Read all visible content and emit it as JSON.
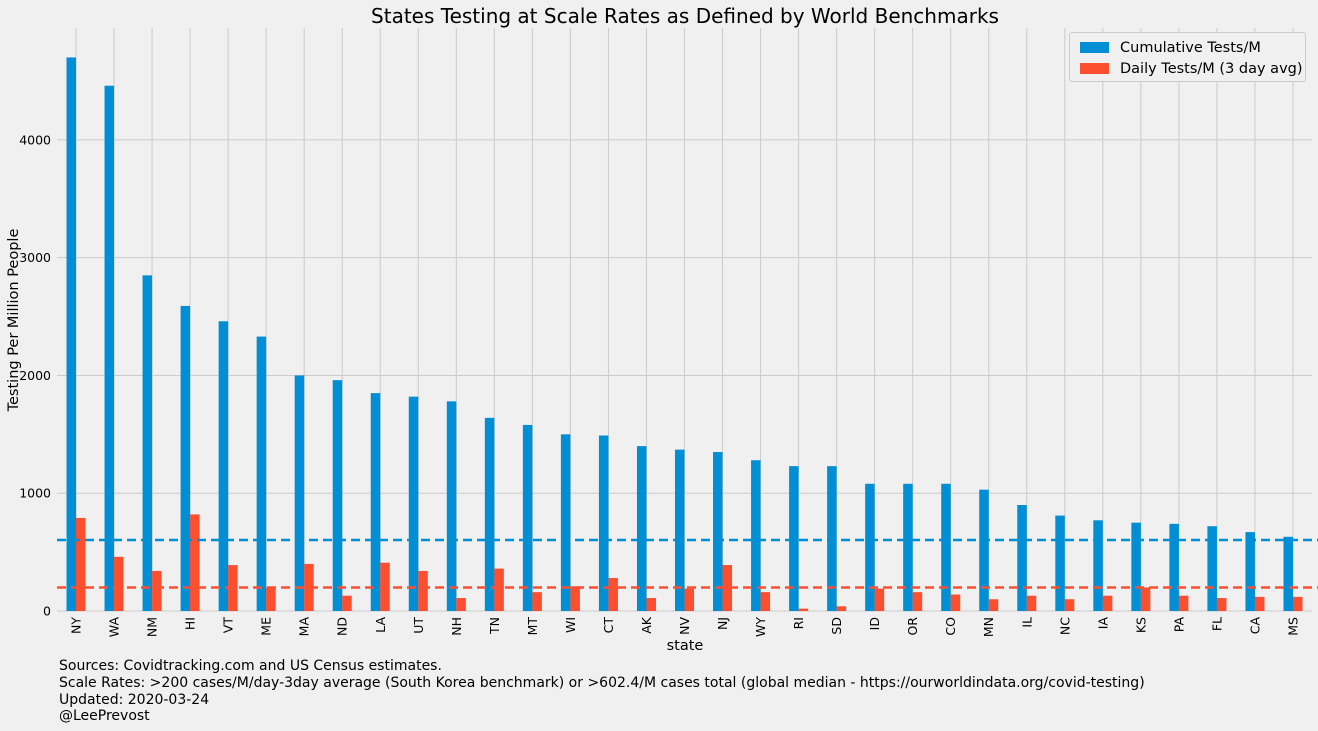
{
  "chart_data": {
    "type": "bar",
    "title": "States Testing at Scale Rates as Defined by World Benchmarks",
    "xlabel": "state",
    "ylabel": "Testing Per Million People",
    "ylim": [
      0,
      4950
    ],
    "yticks": [
      0,
      1000,
      2000,
      3000,
      4000
    ],
    "grid": true,
    "legend_position": "top-right",
    "categories": [
      "NY",
      "WA",
      "NM",
      "HI",
      "VT",
      "ME",
      "MA",
      "ND",
      "LA",
      "UT",
      "NH",
      "TN",
      "MT",
      "WI",
      "CT",
      "AK",
      "NV",
      "NJ",
      "WY",
      "RI",
      "SD",
      "ID",
      "OR",
      "CO",
      "MN",
      "IL",
      "NC",
      "IA",
      "KS",
      "PA",
      "FL",
      "CA",
      "MS"
    ],
    "series": [
      {
        "name": "Cumulative Tests/M",
        "color": "#008fd5",
        "values": [
          4700,
          4460,
          2850,
          2590,
          2460,
          2330,
          2000,
          1960,
          1850,
          1820,
          1780,
          1640,
          1580,
          1500,
          1490,
          1400,
          1370,
          1350,
          1280,
          1230,
          1230,
          1080,
          1080,
          1080,
          1030,
          900,
          810,
          770,
          750,
          740,
          720,
          670,
          630
        ]
      },
      {
        "name": "Daily Tests/M (3 day avg)",
        "color": "#fc4f30",
        "values": [
          790,
          460,
          340,
          820,
          390,
          200,
          400,
          130,
          410,
          340,
          110,
          360,
          160,
          210,
          280,
          110,
          190,
          390,
          160,
          20,
          40,
          190,
          160,
          140,
          100,
          130,
          100,
          130,
          200,
          130,
          110,
          120,
          120
        ]
      }
    ],
    "reference_lines": [
      {
        "value": 602.4,
        "color": "#008fd5",
        "style": "dashed"
      },
      {
        "value": 200,
        "color": "#fc4f30",
        "style": "dashed"
      }
    ]
  },
  "footer": {
    "line1": "Sources: Covidtracking.com and US Census estimates.",
    "line2": "Scale Rates: >200 cases/M/day-3day average (South Korea benchmark) or >602.4/M cases total (global median - https://ourworldindata.org/covid-testing)",
    "line3": "Updated: 2020-03-24",
    "line4": "@LeePrevost"
  }
}
